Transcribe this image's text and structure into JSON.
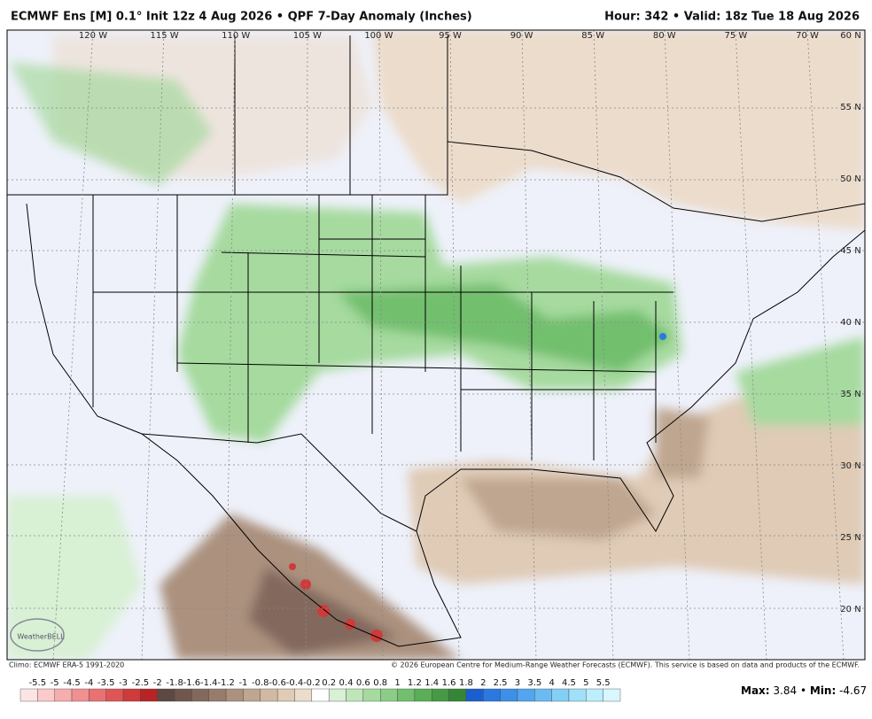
{
  "header": {
    "left": "ECMWF Ens [M] 0.1° Init 12z 4 Aug 2026 • QPF 7-Day Anomaly (Inches)",
    "right": "Hour: 342 • Valid: 18z Tue 18 Aug 2026"
  },
  "map": {
    "lon_labels": [
      "120 W",
      "115 W",
      "110 W",
      "105 W",
      "100 W",
      "95 W",
      "90 W",
      "85 W",
      "80 W",
      "75 W",
      "70 W"
    ],
    "lat_labels": [
      "60 N",
      "55 N",
      "50 N",
      "45 N",
      "40 N",
      "35 N",
      "30 N",
      "25 N",
      "20 N"
    ],
    "logo": "WeatherBELL"
  },
  "footer": {
    "climo": "Climo: ECMWF ERA-5 1991-2020",
    "copyright": "© 2026 European Centre for Medium-Range Weather Forecasts (ECMWF). This service is based on data and products of the ECMWF."
  },
  "legend": {
    "ticks": [
      "-5.5",
      "-5",
      "-4.5",
      "-4",
      "-3.5",
      "-3",
      "-2.5",
      "-2",
      "-1.8",
      "-1.6",
      "-1.4",
      "-1.2",
      "-1",
      "-0.8",
      "-0.6",
      "-0.4",
      "-0.2",
      "0.2",
      "0.4",
      "0.6",
      "0.8",
      "1",
      "1.2",
      "1.4",
      "1.6",
      "1.8",
      "2",
      "2.5",
      "3",
      "3.5",
      "4",
      "4.5",
      "5",
      "5.5"
    ],
    "colors": [
      "#fde4e4",
      "#fbcaca",
      "#f6adad",
      "#f09090",
      "#e87272",
      "#de5555",
      "#cf3a3a",
      "#b82424",
      "#5e4842",
      "#6f574e",
      "#83695d",
      "#977c6c",
      "#ab917e",
      "#bfa690",
      "#d0baa3",
      "#dfcbb6",
      "#ecdccb",
      "#ffffff",
      "#d8f0d4",
      "#bfe6b9",
      "#a6da9f",
      "#8ccd86",
      "#72bf6e",
      "#5aae58",
      "#469a46",
      "#348636",
      "#1a5fd0",
      "#2b78e0",
      "#3d8fe8",
      "#52a5ee",
      "#6abbf2",
      "#84cff6",
      "#a0e0f9",
      "#bdeefc",
      "#d8f7fe"
    ]
  },
  "stats": {
    "max_label": "Max:",
    "max": "3.84",
    "min_label": "Min:",
    "min": "-4.67"
  }
}
